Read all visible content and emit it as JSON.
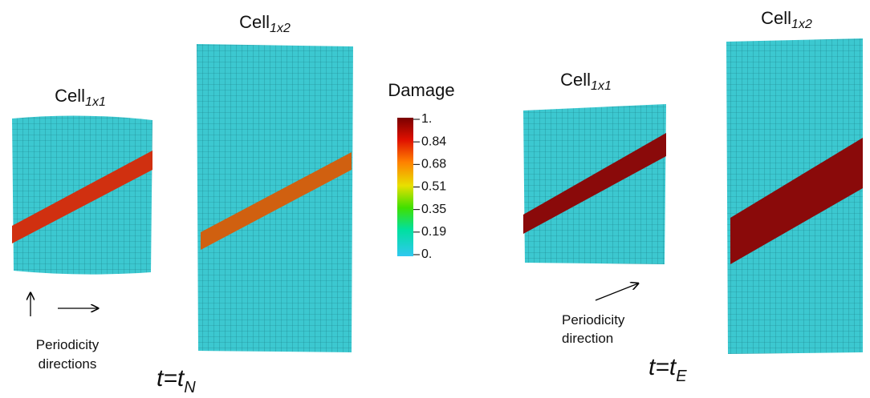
{
  "panels": [
    {
      "label": {
        "base": "Cell",
        "sub": "1x1"
      }
    },
    {
      "label": {
        "base": "Cell",
        "sub": "1x2"
      }
    },
    {
      "label": {
        "base": "Cell",
        "sub": "1x1"
      }
    },
    {
      "label": {
        "base": "Cell",
        "sub": "1x2"
      }
    }
  ],
  "colorbar": {
    "title": "Damage",
    "ticks": [
      "1.",
      "0.84",
      "0.68",
      "0.51",
      "0.35",
      "0.19",
      "0."
    ]
  },
  "annotations": [
    {
      "lines": [
        "Periodicity",
        "directions"
      ]
    },
    {
      "lines": [
        "Periodicity",
        "direction"
      ]
    }
  ],
  "time_labels": [
    {
      "base": "t=t",
      "sub": "N"
    },
    {
      "base": "t=t",
      "sub": "E"
    }
  ]
}
